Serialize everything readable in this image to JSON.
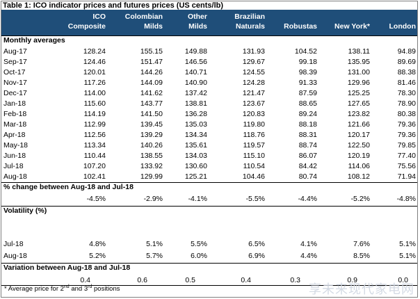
{
  "title": "Table 1:  ICO indicator prices and futures prices (US cents/lb)",
  "columns": [
    {
      "line1": "ICO",
      "line2": "Composite"
    },
    {
      "line1": "Colombian",
      "line2": "Milds"
    },
    {
      "line1": "Other",
      "line2": "Milds"
    },
    {
      "line1": "Brazilian",
      "line2": "Naturals"
    },
    {
      "line1": "",
      "line2": "Robustas"
    },
    {
      "line1": "",
      "line2": "New York*"
    },
    {
      "line1": "",
      "line2": "London"
    }
  ],
  "monthly": {
    "heading": "Monthly averages",
    "rows": [
      {
        "label": "Aug-17",
        "values": [
          "128.24",
          "155.15",
          "149.88",
          "131.93",
          "104.52",
          "138.11",
          "94.89"
        ]
      },
      {
        "label": "Sep-17",
        "values": [
          "124.46",
          "151.47",
          "146.56",
          "129.67",
          "99.18",
          "135.95",
          "89.69"
        ]
      },
      {
        "label": "Oct-17",
        "values": [
          "120.01",
          "144.26",
          "140.71",
          "124.55",
          "98.39",
          "131.00",
          "88.38"
        ]
      },
      {
        "label": "Nov-17",
        "values": [
          "117.26",
          "144.09",
          "140.90",
          "124.28",
          "91.33",
          "129.96",
          "81.46"
        ]
      },
      {
        "label": "Dec-17",
        "values": [
          "114.00",
          "141.62",
          "137.42",
          "121.47",
          "87.59",
          "125.25",
          "78.30"
        ]
      },
      {
        "label": "Jan-18",
        "values": [
          "115.60",
          "143.77",
          "138.81",
          "123.67",
          "88.65",
          "127.65",
          "78.90"
        ]
      },
      {
        "label": "Feb-18",
        "values": [
          "114.19",
          "141.50",
          "136.28",
          "120.83",
          "89.24",
          "123.82",
          "80.38"
        ]
      },
      {
        "label": "Mar-18",
        "values": [
          "112.99",
          "139.45",
          "135.03",
          "119.80",
          "88.18",
          "121.66",
          "79.36"
        ]
      },
      {
        "label": "Apr-18",
        "values": [
          "112.56",
          "139.29",
          "134.34",
          "118.76",
          "88.31",
          "120.17",
          "79.36"
        ]
      },
      {
        "label": "May-18",
        "values": [
          "113.34",
          "140.26",
          "135.61",
          "119.57",
          "88.74",
          "122.50",
          "79.85"
        ]
      },
      {
        "label": "Jun-18",
        "values": [
          "110.44",
          "138.55",
          "134.03",
          "115.10",
          "86.07",
          "120.19",
          "77.40"
        ]
      },
      {
        "label": "Jul-18",
        "values": [
          "107.20",
          "133.92",
          "130.60",
          "110.54",
          "84.42",
          "114.06",
          "75.56"
        ]
      },
      {
        "label": "Aug-18",
        "values": [
          "102.41",
          "129.99",
          "125.21",
          "104.46",
          "80.74",
          "108.12",
          "71.94"
        ]
      }
    ]
  },
  "pct_change": {
    "heading": "% change between Aug-18 and Jul-18",
    "values": [
      "-4.5%",
      "-2.9%",
      "-4.1%",
      "-5.5%",
      "-4.4%",
      "-5.2%",
      "-4.8%"
    ]
  },
  "volatility": {
    "heading": "Volatility (%)",
    "rows": [
      {
        "label": "Jul-18",
        "values": [
          "4.8%",
          "5.1%",
          "5.5%",
          "6.5%",
          "4.1%",
          "7.6%",
          "5.1%"
        ]
      },
      {
        "label": "Aug-18",
        "values": [
          "5.2%",
          "5.7%",
          "6.0%",
          "6.9%",
          "4.4%",
          "8.5%",
          "5.1%"
        ]
      }
    ]
  },
  "variation": {
    "heading": "Variation between Aug-18 and Jul-18",
    "values": [
      "0.4",
      "0.6",
      "0.5",
      "0.4",
      "0.3",
      "0.9",
      "0.0"
    ]
  },
  "footnote": {
    "prefix": "* Average price for 2",
    "sup1": "nd",
    "middle": " and 3",
    "sup2": "rd",
    "suffix": " positions"
  },
  "watermark": "享未来现代家电网"
}
